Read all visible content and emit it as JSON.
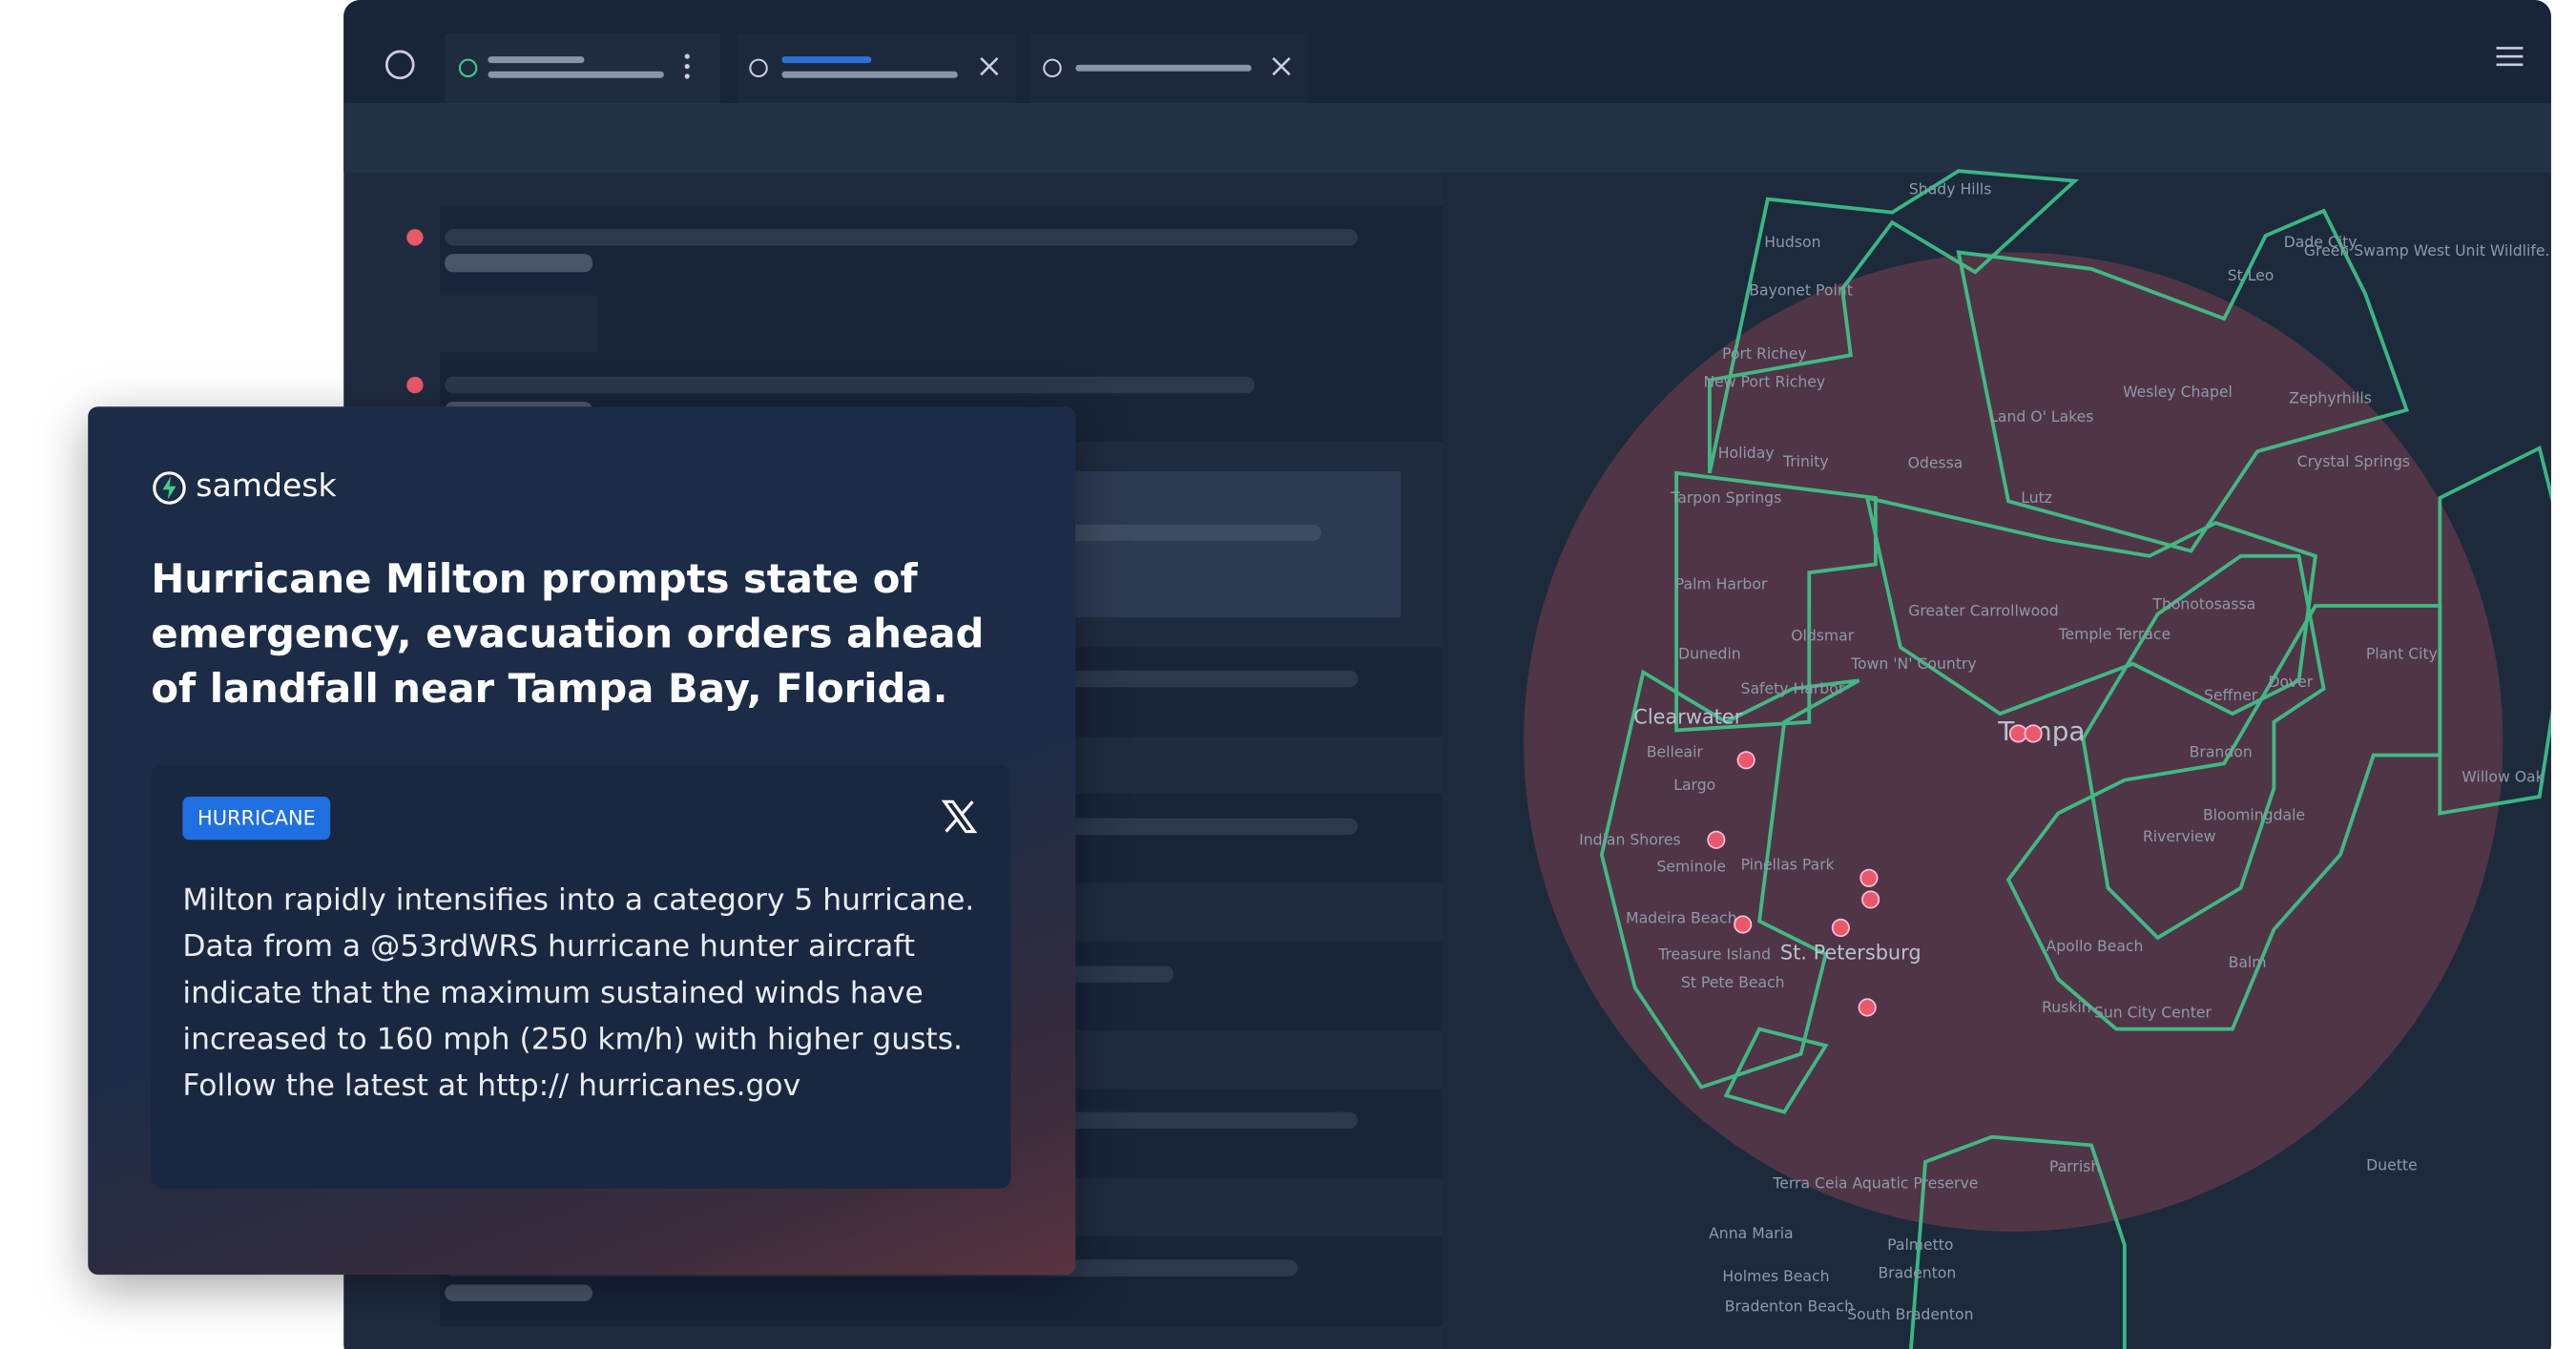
{
  "card": {
    "brand": "samdesk",
    "headline": "Hurricane Milton prompts state of emergency, evacuation orders ahead of landfall near Tampa Bay, Florida.",
    "post": {
      "tag": "HURRICANE",
      "text": "Milton rapidly intensifies into a category 5 hurricane. Data from a @53rdWRS hurricane hunter aircraft indicate that the maximum sustained winds have increased to 160 mph (250 km/h) with higher gusts. Follow the latest at http:// hurricanes.gov"
    }
  },
  "map": {
    "labels": [
      "Shady Hills",
      "Hudson",
      "Bayonet Point",
      "Port Richey",
      "New Port Richey",
      "Holiday",
      "Trinity",
      "Odessa",
      "Land O' Lakes",
      "Wesley Chapel",
      "Zephyrhills",
      "Dade City",
      "St Leo",
      "Green Swamp West Unit Wildlife...",
      "Crystal Springs",
      "Lutz",
      "Tarpon Springs",
      "Palm Harbor",
      "Oldsmar",
      "Greater Carrollwood",
      "Temple Terrace",
      "Thonotosassa",
      "Dunedin",
      "Town 'N' Country",
      "Safety Harbor",
      "Seffner",
      "Dover",
      "Plant City",
      "Clearwater",
      "Tampa",
      "Belleair",
      "Brandon",
      "Largo",
      "Willow Oak",
      "Bloomingdale",
      "Riverview",
      "Indian Shores",
      "Seminole",
      "Pinellas Park",
      "Madeira Beach",
      "Treasure Island",
      "St. Petersburg",
      "Apollo Beach",
      "Balm",
      "St Pete Beach",
      "Ruskin",
      "Sun City Center",
      "Terra Ceia Aquatic Preserve",
      "Parrish",
      "Duette",
      "Anna Maria",
      "Palmetto",
      "Bradenton",
      "Holmes Beach",
      "Bradenton Beach",
      "South Bradenton"
    ]
  }
}
